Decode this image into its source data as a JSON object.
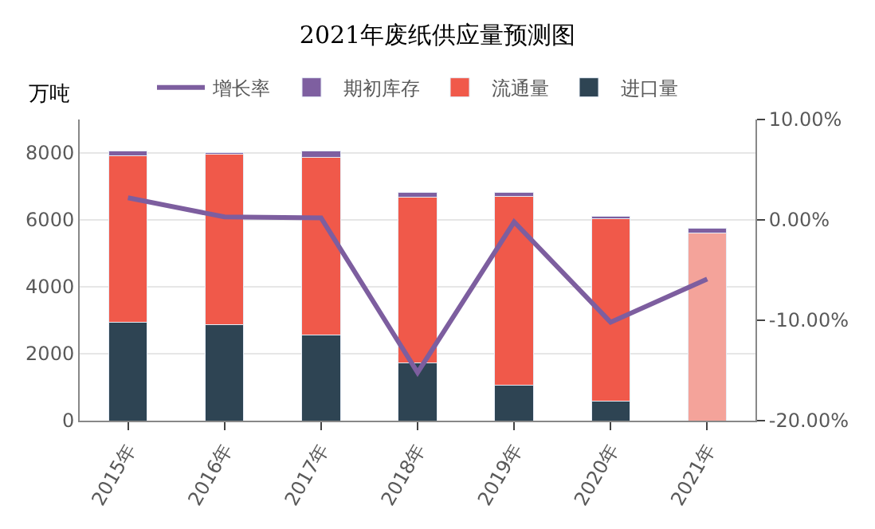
{
  "chart_data": {
    "type": "bar",
    "title": "2021年废纸供应量预测图",
    "ylabel": "万吨",
    "stacked": true,
    "categories": [
      "2015年",
      "2016年",
      "2017年",
      "2018年",
      "2019年",
      "2020年",
      "2021年"
    ],
    "series": [
      {
        "name": "进口量",
        "color": "#2e4453",
        "values": [
          2950,
          2860,
          2570,
          1720,
          1070,
          580,
          null
        ]
      },
      {
        "name": "流通量",
        "color": "#f0594a",
        "colors": [
          "#f0594a",
          "#f0594a",
          "#f0594a",
          "#f0594a",
          "#f0594a",
          "#f0594a",
          "#f4a39a"
        ],
        "values": [
          4970,
          5100,
          5310,
          4970,
          5640,
          5460,
          5600
        ]
      },
      {
        "name": "期初库存",
        "color": "#7e5fa0",
        "values": [
          150,
          50,
          190,
          135,
          120,
          70,
          140
        ]
      },
      {
        "name": "增长率",
        "type": "line",
        "axis": "y2",
        "color": "#7d5e9f",
        "marker": "none",
        "values": [
          2.2,
          0.3,
          0.2,
          -15.2,
          -0.2,
          -10.2,
          -5.9
        ]
      }
    ],
    "ylim": [
      0,
      9000
    ],
    "yticks": [
      0,
      2000,
      4000,
      6000,
      8000
    ],
    "y2lim": [
      -20,
      10
    ],
    "y2ticks": [
      {
        "value": -20,
        "label": "-20.00%"
      },
      {
        "value": -10,
        "label": "-10.00%"
      },
      {
        "value": 0,
        "label": "0.00%"
      },
      {
        "value": 10,
        "label": "10.00%"
      }
    ],
    "grid": "y",
    "legend": "top"
  }
}
